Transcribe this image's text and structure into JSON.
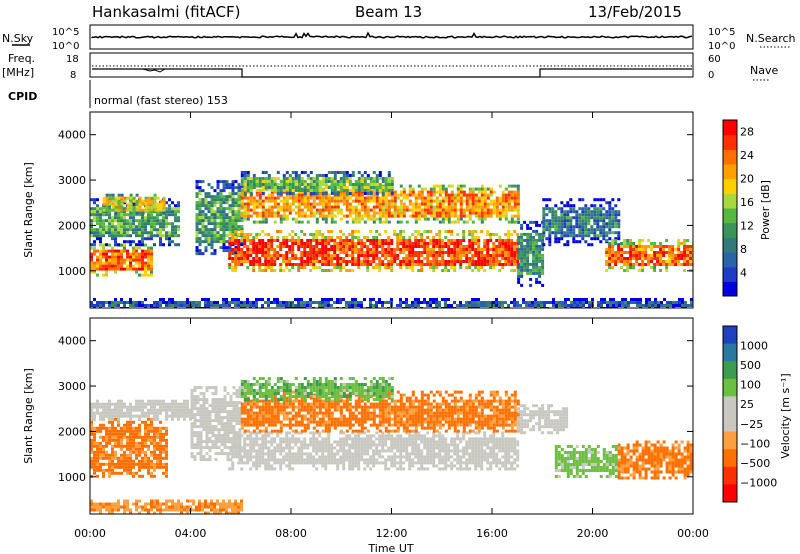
{
  "header": {
    "station": "Hankasalmi (fitACF)",
    "beam": "Beam 13",
    "date": "13/Feb/2015"
  },
  "strip_panels": {
    "noise": {
      "left_label": "N.Sky",
      "right_label": "N.Search",
      "left_ticks": [
        "10^5",
        "10^0"
      ],
      "right_ticks": [
        "10^5",
        "10^0"
      ]
    },
    "freq": {
      "left_label_top": "Freq.",
      "left_label_unit": "[MHz]",
      "right_label": "Nave",
      "left_ticks": [
        "18",
        "8"
      ],
      "right_ticks": [
        "60",
        "0"
      ]
    },
    "cpid": {
      "label": "CPID",
      "value": "normal (fast stereo) 153"
    }
  },
  "chart_data": [
    {
      "type": "heatmap",
      "title": "",
      "xlabel": "Time UT",
      "ylabel": "Slant Range [km]",
      "xlim": [
        0,
        24
      ],
      "ylim": [
        180,
        4500
      ],
      "x_ticks": [
        "00:00",
        "04:00",
        "08:00",
        "12:00",
        "16:00",
        "20:00",
        "00:00"
      ],
      "y_ticks": [
        1000,
        2000,
        3000,
        4000
      ],
      "colorbar": {
        "label": "Power [dB]",
        "ticks": [
          4,
          8,
          12,
          16,
          20,
          24,
          28
        ],
        "range": [
          0,
          30
        ],
        "colors": [
          "#0000e0",
          "#1e3cc8",
          "#2a64a8",
          "#327a7a",
          "#3a9458",
          "#56b840",
          "#a8d840",
          "#ffd000",
          "#ffa000",
          "#ff7000",
          "#ff3000",
          "#ff0000"
        ]
      },
      "echo_regions": [
        {
          "t_start": 0.0,
          "t_end": 2.5,
          "r_low": 900,
          "r_high": 1600,
          "value": 24
        },
        {
          "t_start": 0.0,
          "t_end": 3.5,
          "r_low": 1600,
          "r_high": 2600,
          "value": 12
        },
        {
          "t_start": 0.5,
          "t_end": 3.0,
          "r_low": 2300,
          "r_high": 2700,
          "value": 18
        },
        {
          "t_start": 4.2,
          "t_end": 6.0,
          "r_low": 1400,
          "r_high": 3000,
          "value": 12
        },
        {
          "t_start": 5.5,
          "t_end": 17.0,
          "r_low": 1000,
          "r_high": 1900,
          "value": 26
        },
        {
          "t_start": 6.0,
          "t_end": 17.0,
          "r_low": 2100,
          "r_high": 2900,
          "value": 22
        },
        {
          "t_start": 6.0,
          "t_end": 12.0,
          "r_low": 2700,
          "r_high": 3200,
          "value": 14
        },
        {
          "t_start": 17.0,
          "t_end": 18.0,
          "r_low": 700,
          "r_high": 2100,
          "value": 10
        },
        {
          "t_start": 18.0,
          "t_end": 21.0,
          "r_low": 1600,
          "r_high": 2600,
          "value": 8
        },
        {
          "t_start": 20.5,
          "t_end": 24.0,
          "r_low": 1000,
          "r_high": 1700,
          "value": 24
        },
        {
          "t_start": 0.0,
          "t_end": 24.0,
          "r_low": 200,
          "r_high": 400,
          "value": 6
        }
      ]
    },
    {
      "type": "heatmap",
      "title": "",
      "xlabel": "Time UT",
      "ylabel": "Slant Range [km]",
      "xlim": [
        0,
        24
      ],
      "ylim": [
        180,
        4500
      ],
      "x_ticks": [
        "00:00",
        "04:00",
        "08:00",
        "12:00",
        "16:00",
        "20:00",
        "00:00"
      ],
      "y_ticks": [
        1000,
        2000,
        3000,
        4000
      ],
      "colorbar": {
        "label": "Velocity [m s⁻¹]",
        "ticks": [
          "1000",
          "500",
          "100",
          "25",
          "−25",
          "−100",
          "−500",
          "−1000"
        ],
        "colors": [
          "#2040c0",
          "#2878a0",
          "#3c9c50",
          "#6cc040",
          "#c8c8c0",
          "#c8c8c0",
          "#ffa040",
          "#ff7000",
          "#ff3000",
          "#ff0000"
        ]
      },
      "echo_regions": [
        {
          "t_start": 0.0,
          "t_end": 3.0,
          "r_low": 1000,
          "r_high": 2300,
          "value": -150
        },
        {
          "t_start": 0.0,
          "t_end": 4.0,
          "r_low": 2300,
          "r_high": 2700,
          "value": 0
        },
        {
          "t_start": 4.0,
          "t_end": 6.0,
          "r_low": 1400,
          "r_high": 3000,
          "value": 0
        },
        {
          "t_start": 5.5,
          "t_end": 17.0,
          "r_low": 1200,
          "r_high": 2000,
          "value": 0
        },
        {
          "t_start": 6.0,
          "t_end": 17.0,
          "r_low": 2000,
          "r_high": 2900,
          "value": -150
        },
        {
          "t_start": 6.0,
          "t_end": 12.0,
          "r_low": 2700,
          "r_high": 3200,
          "value": 200
        },
        {
          "t_start": 17.0,
          "t_end": 19.0,
          "r_low": 2000,
          "r_high": 2600,
          "value": 0
        },
        {
          "t_start": 18.5,
          "t_end": 21.0,
          "r_low": 1000,
          "r_high": 1700,
          "value": 150
        },
        {
          "t_start": 21.0,
          "t_end": 24.0,
          "r_low": 1000,
          "r_high": 1800,
          "value": -150
        },
        {
          "t_start": 0.0,
          "t_end": 6.0,
          "r_low": 200,
          "r_high": 500,
          "value": -80
        }
      ]
    }
  ]
}
